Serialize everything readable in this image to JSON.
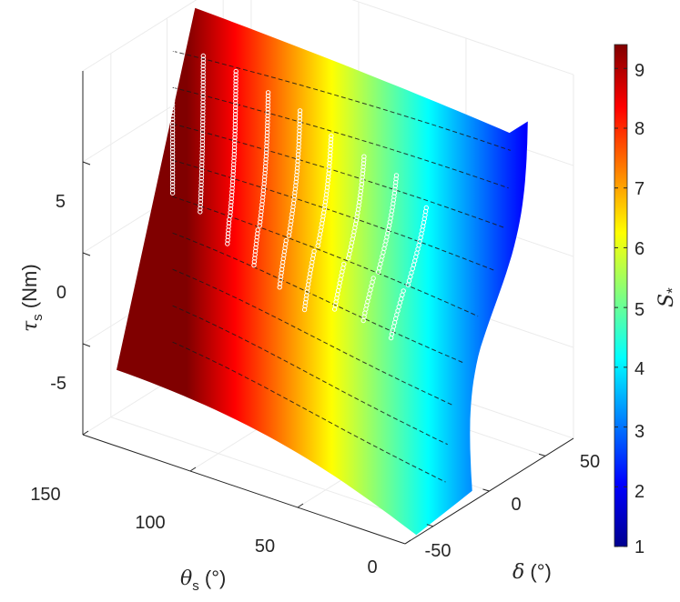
{
  "chart_data": {
    "type": "surface3d",
    "axes": {
      "theta_s": {
        "label_symbol": "θ",
        "label_sub": "s",
        "label_unit": " (°)",
        "ticks": [
          "0",
          "50",
          "100",
          "150"
        ],
        "range": [
          0,
          150
        ]
      },
      "delta": {
        "label_symbol": "δ",
        "label_unit": " (°)",
        "ticks": [
          "-50",
          "0",
          "50"
        ],
        "range": [
          -75,
          75
        ]
      },
      "tau_s": {
        "label_symbol": "τ",
        "label_sub": "s",
        "label_unit": " (Nm)",
        "ticks": [
          "-5",
          "0",
          "5"
        ],
        "range": [
          -10,
          10
        ]
      }
    },
    "colorbar": {
      "label_symbol": "S",
      "label_sub": "*",
      "ticks": [
        "1",
        "2",
        "3",
        "4",
        "5",
        "6",
        "7",
        "8",
        "9"
      ],
      "range": [
        1,
        9.4
      ],
      "colormap": "jet"
    },
    "surface": {
      "color_variable": "S*",
      "color_max_at_theta_150": 9.4,
      "color_min_at_theta_0": 1
    },
    "data_series": {
      "marker": "circle",
      "color": "#ffffff",
      "lines": [
        {
          "theta_s": 150,
          "tau_s_range": [
            0.2,
            8.4
          ]
        },
        {
          "theta_s": 137,
          "tau_s_range": [
            -0.3,
            8.2
          ]
        },
        {
          "theta_s": 123,
          "tau_s_range": [
            -1.4,
            7.8
          ]
        },
        {
          "theta_s": 109,
          "tau_s_range": [
            -1.9,
            7.1
          ]
        },
        {
          "theta_s": 95,
          "tau_s_range": [
            -2.4,
            6.6
          ]
        },
        {
          "theta_s": 81,
          "tau_s_range": [
            -2.9,
            5.9
          ]
        },
        {
          "theta_s": 66,
          "tau_s_range": [
            -2.2,
            5.3
          ]
        },
        {
          "theta_s": 51,
          "tau_s_range": [
            -2.1,
            4.9
          ]
        },
        {
          "theta_s": 36,
          "tau_s_range": [
            -2.3,
            3.8
          ]
        }
      ]
    },
    "colors": {
      "axis": "#262626",
      "grid": "#ebebeb",
      "contour": "#1a1a1a"
    }
  }
}
